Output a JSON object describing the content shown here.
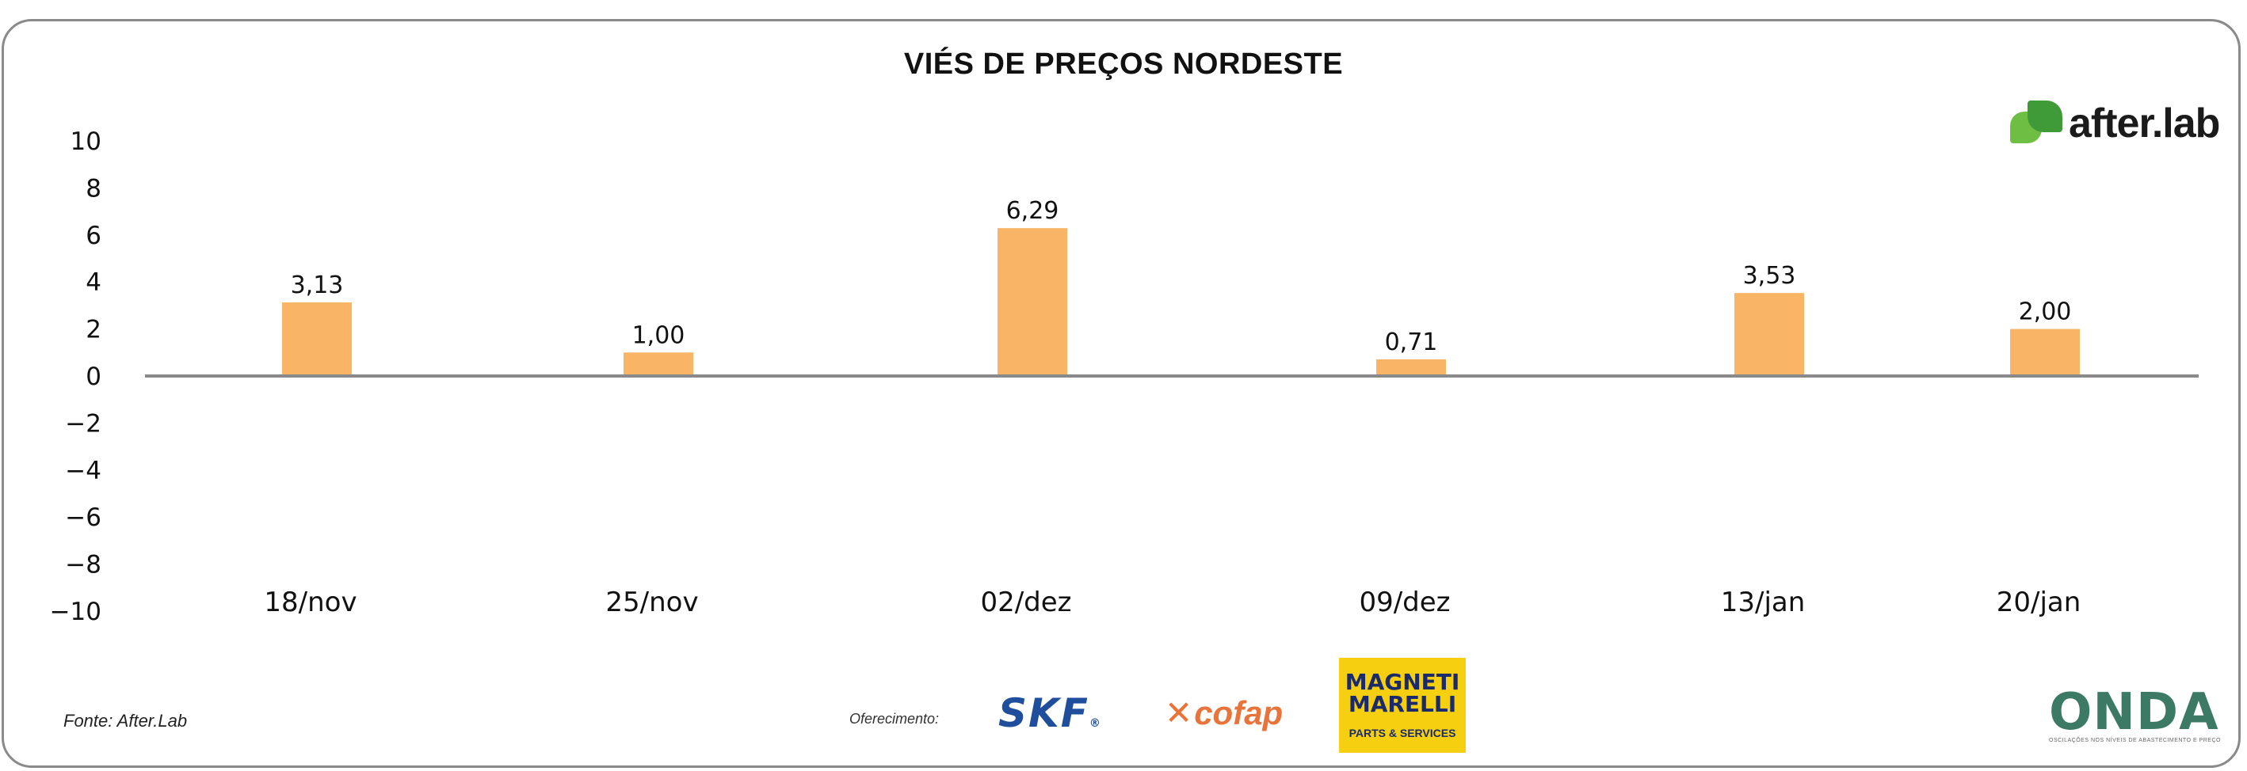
{
  "chart_data": {
    "type": "bar",
    "title": "VIÉS DE PREÇOS NORDESTE",
    "categories": [
      "18/nov",
      "25/nov",
      "02/dez",
      "09/dez",
      "13/jan",
      "20/jan"
    ],
    "values": [
      3.13,
      1.0,
      6.29,
      0.71,
      3.53,
      2.0
    ],
    "data_labels": [
      "3,13",
      "1,00",
      "6,29",
      "0,71",
      "3,53",
      "2,00"
    ],
    "ylim": [
      -10,
      10
    ],
    "yticks": [
      10,
      8,
      6,
      4,
      2,
      0,
      -2,
      -4,
      -6,
      -8,
      -10
    ],
    "bar_color": "#f9b565",
    "axis_color": "#8a8a8a",
    "xlabel": "",
    "ylabel": ""
  },
  "branding": {
    "logo": "after.lab",
    "logo_icon": "afterlab-mark-icon",
    "accent_green": "#6fbe44"
  },
  "footer": {
    "source": "Fonte: After.Lab",
    "offer_label": "Oferecimento:",
    "sponsors": {
      "skf": "SKF",
      "skf_mark": "®",
      "cofap": "cofap",
      "magneti_line1": "MAGNETI",
      "magneti_line2": "MARELLI",
      "magneti_sub": "PARTS & SERVICES"
    },
    "onda": "ONDA",
    "onda_sub": "OSCILAÇÕES NOS NÍVEIS DE ABASTECIMENTO E PREÇO"
  }
}
